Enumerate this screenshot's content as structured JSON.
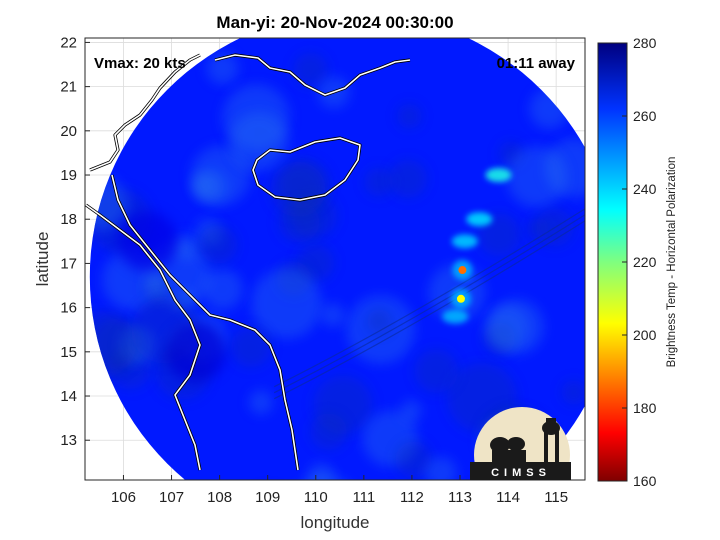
{
  "chart_data": {
    "type": "heatmap",
    "title": "Man-yi: 20-Nov-2024 00:30:00",
    "xlabel": "longitude",
    "ylabel": "latitude",
    "xlim": [
      105.2,
      115.6
    ],
    "ylim": [
      12.1,
      22.1
    ],
    "x_ticks": [
      106,
      107,
      108,
      109,
      110,
      111,
      112,
      113,
      114,
      115
    ],
    "y_ticks": [
      13,
      14,
      15,
      16,
      17,
      18,
      19,
      20,
      21,
      22
    ],
    "grid": true,
    "colorbar": {
      "label": "Brightness Temp - Horizontal Polarization",
      "range": [
        160,
        280
      ],
      "ticks": [
        160,
        180,
        200,
        220,
        240,
        260,
        280
      ],
      "colormap": "jet"
    },
    "swath": {
      "center_lon": 110.8,
      "center_lat": 16.7,
      "radius_deg": 5.5
    },
    "background_temp": 262,
    "features": [
      {
        "name": "convective core",
        "lon": 113.05,
        "lat": 16.85,
        "temp": 188
      },
      {
        "name": "convective core",
        "lon": 113.02,
        "lat": 16.2,
        "temp": 205
      },
      {
        "name": "rainband",
        "lon": 113.4,
        "lat": 18.0,
        "temp": 238
      },
      {
        "name": "rainband",
        "lon": 113.8,
        "lat": 19.0,
        "temp": 232
      },
      {
        "name": "rainband",
        "lon": 113.1,
        "lat": 17.5,
        "temp": 240
      },
      {
        "name": "rainband",
        "lon": 112.9,
        "lat": 15.8,
        "temp": 243
      },
      {
        "name": "land",
        "lon": 107.5,
        "lat": 15.0,
        "temp": 270
      },
      {
        "name": "land",
        "lon": 106.5,
        "lat": 17.5,
        "temp": 268
      }
    ]
  },
  "annotations": {
    "vmax": "Vmax: 20 kts",
    "time_away": "01:11 away"
  },
  "logo": {
    "text": "CIMSS"
  },
  "colors": {
    "coast": "#ffffff",
    "outline": "#000000"
  }
}
